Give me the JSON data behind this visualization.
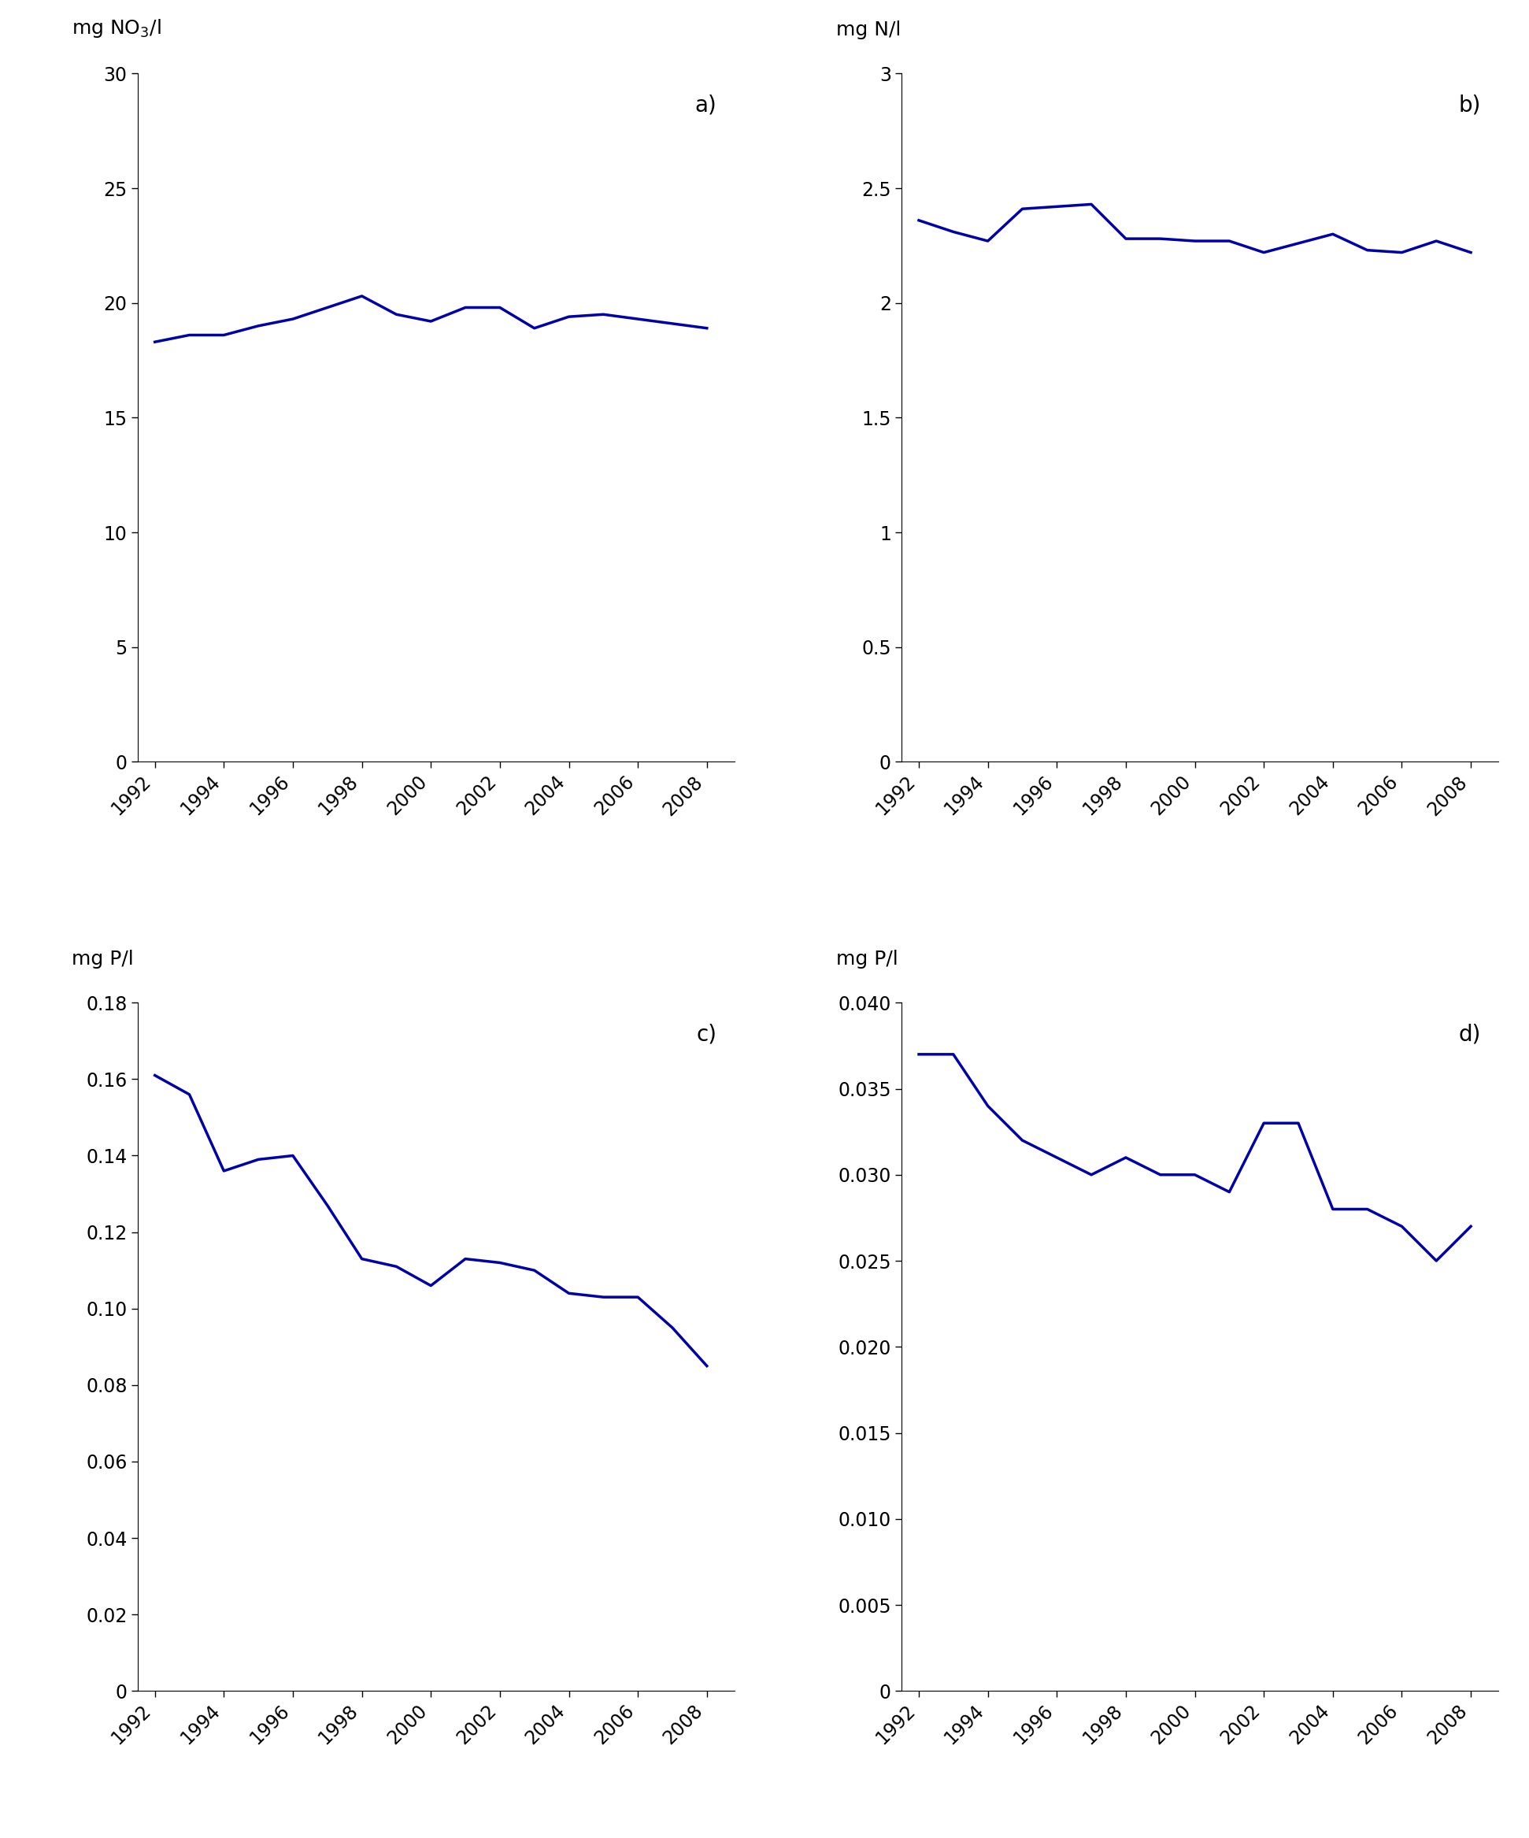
{
  "years": [
    1992,
    1993,
    1994,
    1995,
    1996,
    1997,
    1998,
    1999,
    2000,
    2001,
    2002,
    2003,
    2004,
    2005,
    2006,
    2007,
    2008
  ],
  "panel_a": {
    "values": [
      18.3,
      18.6,
      18.6,
      19.0,
      19.3,
      19.8,
      20.3,
      19.5,
      19.2,
      19.8,
      19.8,
      18.9,
      19.4,
      19.5,
      19.3,
      19.1,
      18.9
    ],
    "ylabel": "mg NO$_3$/l",
    "label": "a)",
    "ylim": [
      0,
      30
    ],
    "yticks": [
      0,
      5,
      10,
      15,
      20,
      25,
      30
    ]
  },
  "panel_b": {
    "values": [
      2.36,
      2.31,
      2.27,
      2.41,
      2.42,
      2.43,
      2.28,
      2.28,
      2.27,
      2.27,
      2.22,
      2.26,
      2.3,
      2.23,
      2.22,
      2.27,
      2.22
    ],
    "ylabel": "mg N/l",
    "label": "b)",
    "ylim": [
      0,
      3
    ],
    "yticks": [
      0,
      0.5,
      1.0,
      1.5,
      2.0,
      2.5,
      3.0
    ]
  },
  "panel_c": {
    "values": [
      0.161,
      0.156,
      0.136,
      0.139,
      0.14,
      0.127,
      0.113,
      0.111,
      0.106,
      0.113,
      0.112,
      0.11,
      0.104,
      0.103,
      0.103,
      0.095,
      0.085
    ],
    "ylabel": "mg P/l",
    "label": "c)",
    "ylim": [
      0,
      0.18
    ],
    "yticks": [
      0,
      0.02,
      0.04,
      0.06,
      0.08,
      0.1,
      0.12,
      0.14,
      0.16,
      0.18
    ]
  },
  "panel_d": {
    "values": [
      0.037,
      0.037,
      0.034,
      0.032,
      0.031,
      0.03,
      0.031,
      0.03,
      0.03,
      0.029,
      0.033,
      0.033,
      0.028,
      0.028,
      0.027,
      0.025,
      0.027
    ],
    "ylabel": "mg P/l",
    "label": "d)",
    "ylim": [
      0,
      0.04
    ],
    "yticks": [
      0,
      0.005,
      0.01,
      0.015,
      0.02,
      0.025,
      0.03,
      0.035,
      0.04
    ]
  },
  "line_color": "#0000AA",
  "line_width": 2.5,
  "background_color": "#ffffff",
  "xticks": [
    1992,
    1994,
    1996,
    1998,
    2000,
    2002,
    2004,
    2006,
    2008
  ],
  "xlim": [
    1991.5,
    2008.8
  ],
  "tick_fontsize": 17,
  "label_fontsize": 18,
  "panel_label_fontsize": 20
}
